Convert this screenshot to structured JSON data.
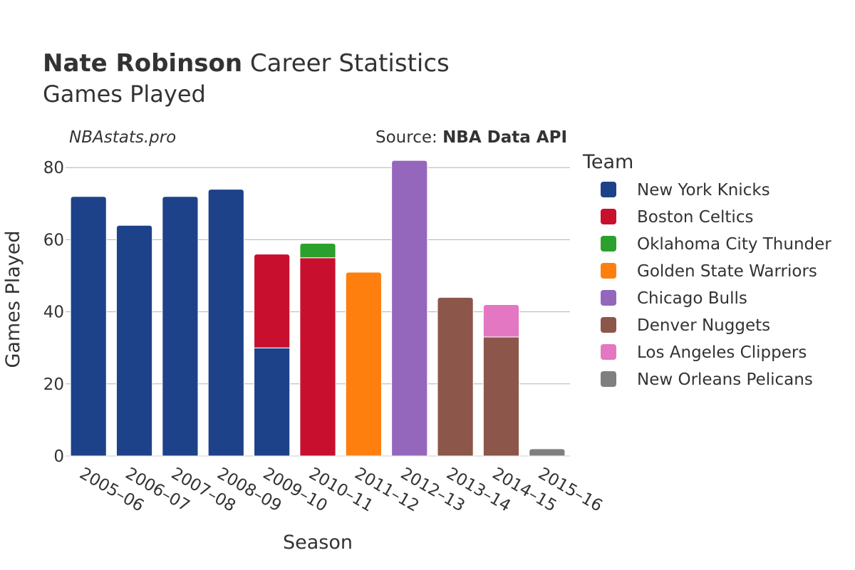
{
  "header": {
    "title_bold": "Nate Robinson",
    "title_rest": " Career Statistics",
    "subtitle": "Games Played",
    "watermark": "NBAstats.pro",
    "source_prefix": "Source: ",
    "source_name": "NBA Data API"
  },
  "legend": {
    "title": "Team"
  },
  "chart_data": {
    "type": "bar",
    "stacked": true,
    "categories": [
      "2005–06",
      "2006–07",
      "2007–08",
      "2008–09",
      "2009–10",
      "2010–11",
      "2011–12",
      "2012–13",
      "2013–14",
      "2014–15",
      "2015–16"
    ],
    "xlabel": "Season",
    "ylabel": "Games Played",
    "ylim": [
      0,
      84
    ],
    "yticks": [
      0,
      20,
      40,
      60,
      80
    ],
    "grid": true,
    "legend_position": "right",
    "series": [
      {
        "name": "New York Knicks",
        "color": "#1d428a",
        "values": [
          72,
          64,
          72,
          74,
          30,
          0,
          0,
          0,
          0,
          0,
          0
        ]
      },
      {
        "name": "Boston Celtics",
        "color": "#c8102e",
        "values": [
          0,
          0,
          0,
          0,
          26,
          55,
          0,
          0,
          0,
          0,
          0
        ]
      },
      {
        "name": "Oklahoma City Thunder",
        "color": "#2ca02c",
        "values": [
          0,
          0,
          0,
          0,
          0,
          4,
          0,
          0,
          0,
          0,
          0
        ]
      },
      {
        "name": "Golden State Warriors",
        "color": "#ff7f0e",
        "values": [
          0,
          0,
          0,
          0,
          0,
          0,
          51,
          0,
          0,
          0,
          0
        ]
      },
      {
        "name": "Chicago Bulls",
        "color": "#9467bd",
        "values": [
          0,
          0,
          0,
          0,
          0,
          0,
          0,
          82,
          0,
          0,
          0
        ]
      },
      {
        "name": "Denver Nuggets",
        "color": "#8c564b",
        "values": [
          0,
          0,
          0,
          0,
          0,
          0,
          0,
          0,
          44,
          33,
          0
        ]
      },
      {
        "name": "Los Angeles Clippers",
        "color": "#e377c2",
        "values": [
          0,
          0,
          0,
          0,
          0,
          0,
          0,
          0,
          0,
          9,
          0
        ]
      },
      {
        "name": "New Orleans Pelicans",
        "color": "#7f7f7f",
        "values": [
          0,
          0,
          0,
          0,
          0,
          0,
          0,
          0,
          0,
          0,
          2
        ]
      }
    ]
  }
}
